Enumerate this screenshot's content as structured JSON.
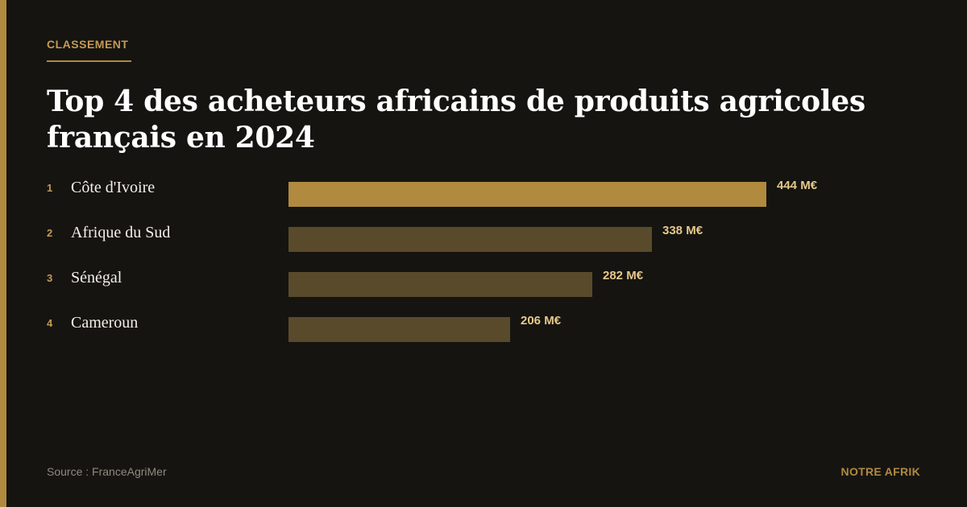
{
  "kicker": "CLASSEMENT",
  "title": "Top 4 des acheteurs africains de produits agricoles français en 2024",
  "source": "Source : FranceAgriMer",
  "brand": "NOTRE AFRIK",
  "colors": {
    "background": "#151411",
    "accent": "#b08a3f",
    "bar_primary": "#b08a3f",
    "bar_secondary": "#5a4a2c",
    "value_text": "#e5c88a",
    "rank_text": "#c49a55"
  },
  "chart_data": {
    "type": "bar",
    "orientation": "horizontal",
    "title": "Top 4 des acheteurs africains de produits agricoles français en 2024",
    "unit": "M€",
    "xlim": [
      0,
      444
    ],
    "ranks": [
      "1",
      "2",
      "3",
      "4"
    ],
    "categories": [
      "Côte d'Ivoire",
      "Afrique du Sud",
      "Sénégal",
      "Cameroun"
    ],
    "values": [
      444,
      338,
      282,
      206
    ],
    "value_labels": [
      "444 M€",
      "338 M€",
      "282 M€",
      "206 M€"
    ]
  }
}
